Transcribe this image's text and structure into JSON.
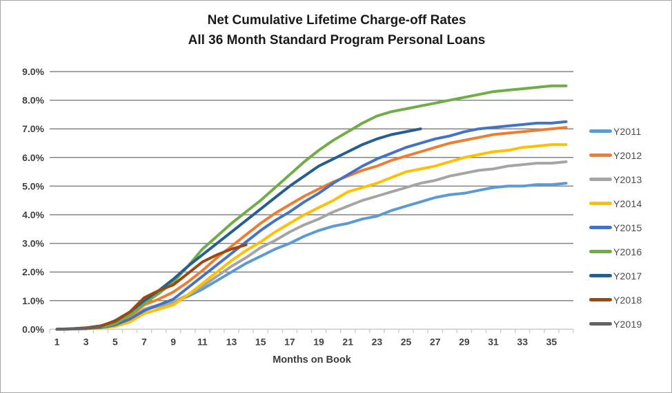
{
  "chart_data": {
    "type": "line",
    "title": "Net Cumulative Lifetime Charge-off Rates",
    "subtitle": "All 36 Month Standard Program Personal Loans",
    "xlabel": "Months on Book",
    "ylabel": "",
    "ylim": [
      0,
      9
    ],
    "y_tick_step": 1,
    "y_tick_labels": [
      "0.0%",
      "1.0%",
      "2.0%",
      "3.0%",
      "4.0%",
      "5.0%",
      "6.0%",
      "7.0%",
      "8.0%",
      "9.0%"
    ],
    "x_range": [
      1,
      36
    ],
    "x_tick_labels": [
      "1",
      "3",
      "5",
      "7",
      "9",
      "11",
      "13",
      "15",
      "17",
      "19",
      "21",
      "23",
      "25",
      "27",
      "29",
      "31",
      "33",
      "35"
    ],
    "grid": true,
    "legend_position": "right",
    "gridline_color": "#848484",
    "axis_color": "#c9c9c9",
    "tick_label_color": "#404040",
    "series": [
      {
        "name": "Y2011",
        "color": "#5B9BD5",
        "start_month": 1,
        "values": [
          0.0,
          0.01,
          0.02,
          0.05,
          0.12,
          0.35,
          0.7,
          0.85,
          0.95,
          1.15,
          1.4,
          1.7,
          2.0,
          2.3,
          2.55,
          2.8,
          3.0,
          3.25,
          3.45,
          3.6,
          3.7,
          3.85,
          3.95,
          4.15,
          4.3,
          4.45,
          4.6,
          4.7,
          4.75,
          4.85,
          4.95,
          5.0,
          5.0,
          5.05,
          5.05,
          5.1
        ]
      },
      {
        "name": "Y2012",
        "color": "#ED7D31",
        "start_month": 1,
        "values": [
          0.0,
          0.01,
          0.03,
          0.06,
          0.15,
          0.45,
          0.85,
          1.05,
          1.3,
          1.65,
          2.05,
          2.5,
          2.9,
          3.3,
          3.7,
          4.05,
          4.35,
          4.65,
          4.9,
          5.15,
          5.35,
          5.55,
          5.7,
          5.9,
          6.05,
          6.2,
          6.35,
          6.5,
          6.6,
          6.7,
          6.8,
          6.85,
          6.9,
          6.95,
          7.0,
          7.05
        ]
      },
      {
        "name": "Y2013",
        "color": "#A5A5A5",
        "start_month": 1,
        "values": [
          0.0,
          0.01,
          0.02,
          0.05,
          0.12,
          0.35,
          0.7,
          0.8,
          0.95,
          1.2,
          1.5,
          1.85,
          2.2,
          2.5,
          2.85,
          3.1,
          3.4,
          3.65,
          3.85,
          4.1,
          4.3,
          4.5,
          4.65,
          4.8,
          4.95,
          5.1,
          5.2,
          5.35,
          5.45,
          5.55,
          5.6,
          5.7,
          5.75,
          5.8,
          5.8,
          5.85
        ]
      },
      {
        "name": "Y2014",
        "color": "#FFC000",
        "start_month": 1,
        "values": [
          0.0,
          0.01,
          0.02,
          0.04,
          0.1,
          0.25,
          0.55,
          0.7,
          0.85,
          1.2,
          1.6,
          2.0,
          2.4,
          2.75,
          3.05,
          3.4,
          3.7,
          4.0,
          4.25,
          4.5,
          4.8,
          4.95,
          5.1,
          5.3,
          5.5,
          5.6,
          5.7,
          5.85,
          6.0,
          6.1,
          6.2,
          6.25,
          6.35,
          6.4,
          6.45,
          6.45
        ]
      },
      {
        "name": "Y2015",
        "color": "#4472C4",
        "start_month": 1,
        "values": [
          0.0,
          0.01,
          0.03,
          0.06,
          0.15,
          0.35,
          0.65,
          0.85,
          1.05,
          1.45,
          1.85,
          2.25,
          2.65,
          3.05,
          3.45,
          3.8,
          4.1,
          4.45,
          4.75,
          5.1,
          5.4,
          5.7,
          5.95,
          6.15,
          6.35,
          6.5,
          6.65,
          6.75,
          6.9,
          7.0,
          7.05,
          7.1,
          7.15,
          7.2,
          7.2,
          7.25
        ]
      },
      {
        "name": "Y2016",
        "color": "#70AD47",
        "start_month": 1,
        "values": [
          0.0,
          0.01,
          0.03,
          0.07,
          0.2,
          0.5,
          0.9,
          1.25,
          1.65,
          2.2,
          2.8,
          3.25,
          3.7,
          4.1,
          4.5,
          4.95,
          5.4,
          5.85,
          6.25,
          6.6,
          6.9,
          7.2,
          7.45,
          7.6,
          7.7,
          7.8,
          7.9,
          8.0,
          8.1,
          8.2,
          8.3,
          8.35,
          8.4,
          8.45,
          8.5,
          8.5
        ]
      },
      {
        "name": "Y2017",
        "color": "#255E91",
        "start_month": 1,
        "values": [
          0.0,
          0.02,
          0.04,
          0.1,
          0.3,
          0.6,
          1.0,
          1.35,
          1.75,
          2.2,
          2.6,
          3.0,
          3.4,
          3.8,
          4.2,
          4.6,
          5.0,
          5.35,
          5.7,
          5.95,
          6.2,
          6.45,
          6.65,
          6.8,
          6.9,
          7.0
        ]
      },
      {
        "name": "Y2018",
        "color": "#9E480E",
        "start_month": 1,
        "values": [
          0.0,
          0.02,
          0.05,
          0.12,
          0.28,
          0.6,
          1.1,
          1.35,
          1.55,
          1.95,
          2.35,
          2.6,
          2.8,
          2.95
        ]
      },
      {
        "name": "Y2019",
        "color": "#636363",
        "start_month": 1,
        "values": [
          0.0,
          0.01,
          0.03,
          0.08
        ]
      }
    ]
  }
}
